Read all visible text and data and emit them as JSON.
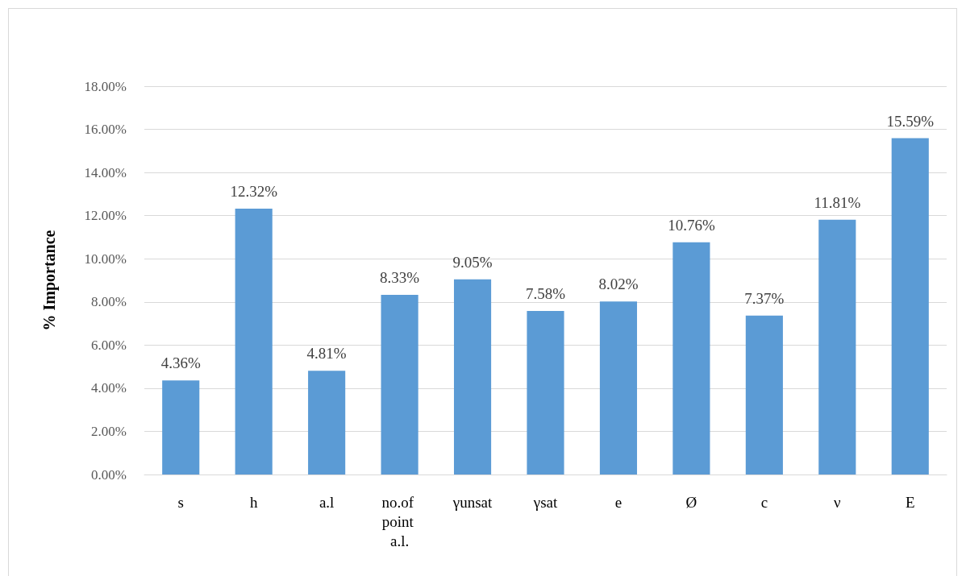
{
  "chart_data": {
    "type": "bar",
    "ylabel": "% Importance",
    "categories": [
      "s",
      "h",
      "a.l",
      "no.of point a.l.",
      "γunsat",
      "γsat",
      "e",
      "Ø",
      "c",
      "ν",
      "E"
    ],
    "values": [
      4.36,
      12.32,
      4.81,
      8.33,
      9.05,
      7.58,
      8.02,
      10.76,
      7.37,
      11.81,
      15.59
    ],
    "color": "#5b9bd5",
    "value_labels": [
      "4.36%",
      "12.32%",
      "4.81%",
      "8.33%",
      "9.05%",
      "7.58%",
      "8.02%",
      "10.76%",
      "7.37%",
      "11.81%",
      "15.59%"
    ],
    "ylim": [
      0,
      18
    ],
    "yticks": [
      {
        "value": 0,
        "label": "0.00%"
      },
      {
        "value": 2,
        "label": "2.00%"
      },
      {
        "value": 4,
        "label": "4.00%"
      },
      {
        "value": 6,
        "label": "6.00%"
      },
      {
        "value": 8,
        "label": "8.00%"
      },
      {
        "value": 10,
        "label": "10.00%"
      },
      {
        "value": 12,
        "label": "12.00%"
      },
      {
        "value": 14,
        "label": "14.00%"
      },
      {
        "value": 16,
        "label": "16.00%"
      },
      {
        "value": 18,
        "label": "18.00%"
      }
    ],
    "grid": "y"
  }
}
